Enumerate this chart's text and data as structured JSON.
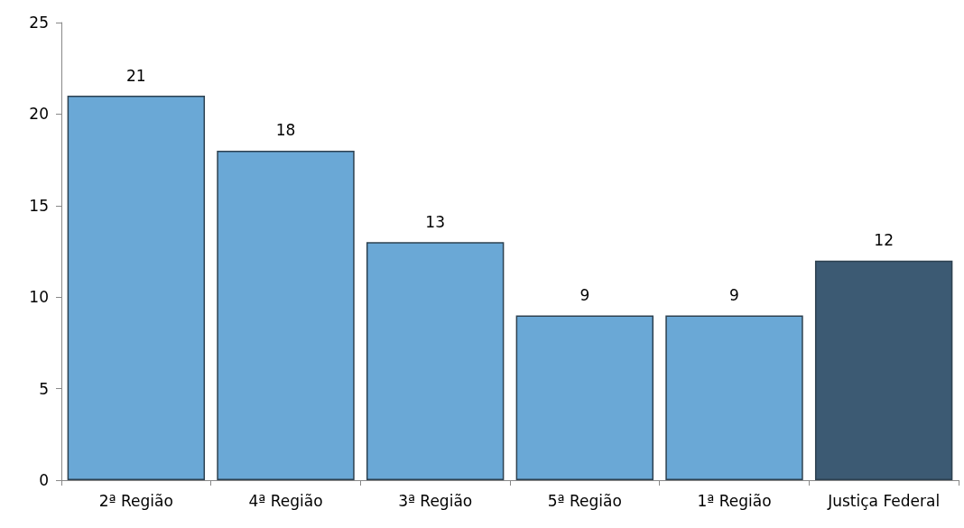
{
  "chart_data": {
    "type": "bar",
    "categories": [
      "2ª Região",
      "4ª Região",
      "3ª Região",
      "5ª Região",
      "1ª Região",
      "Justiça Federal"
    ],
    "values": [
      21,
      18,
      13,
      9,
      9,
      12
    ],
    "colors": [
      "#6aa8d6",
      "#6aa8d6",
      "#6aa8d6",
      "#6aa8d6",
      "#6aa8d6",
      "#3c5a73"
    ],
    "ylim": [
      0,
      25
    ],
    "yticks": [
      0,
      5,
      10,
      15,
      20,
      25
    ],
    "data_labels": true
  }
}
